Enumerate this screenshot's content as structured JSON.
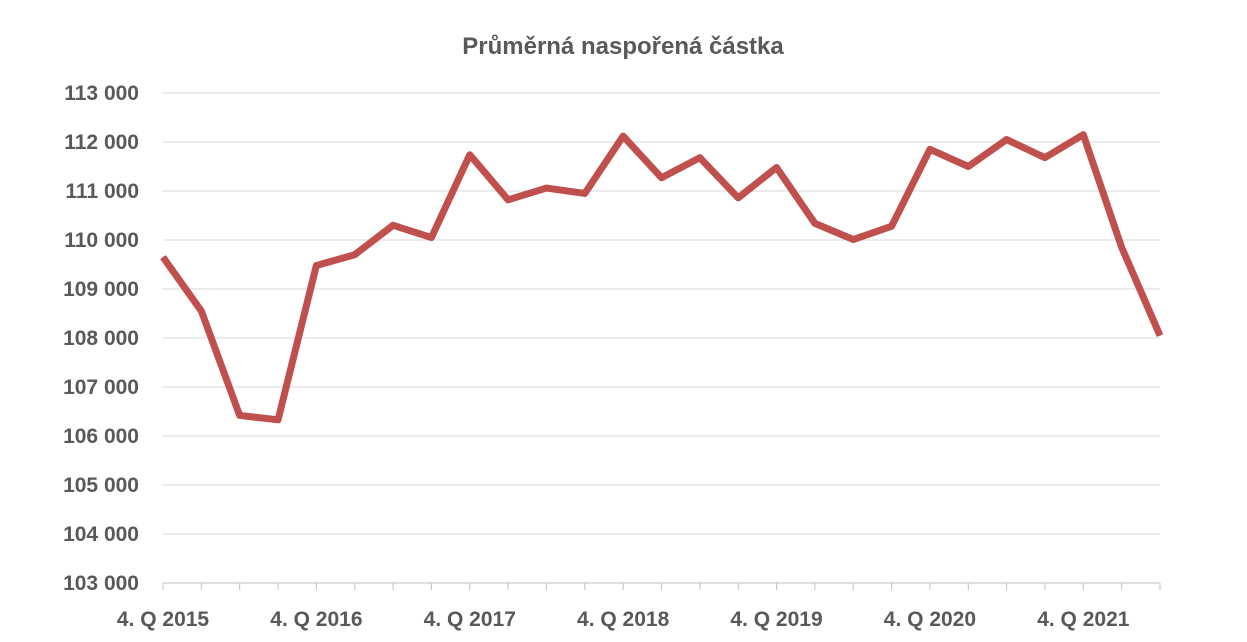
{
  "chart_data": {
    "type": "line",
    "title": "Průměrná naspořená částka",
    "xlabel": "",
    "ylabel": "",
    "ylim": [
      103000,
      113000
    ],
    "yticks": [
      103000,
      104000,
      105000,
      106000,
      107000,
      108000,
      109000,
      110000,
      111000,
      112000,
      113000
    ],
    "ytick_labels": [
      "103 000",
      "104 000",
      "105 000",
      "106 000",
      "107 000",
      "108 000",
      "109 000",
      "110 000",
      "111 000",
      "112 000",
      "113 000"
    ],
    "x_tick_labels": [
      "4. Q 2015",
      "4. Q 2016",
      "4. Q 2017",
      "4. Q 2018",
      "4. Q 2019",
      "4. Q 2020",
      "4. Q 2021"
    ],
    "x_tick_label_quarter_index": [
      0,
      4,
      8,
      12,
      16,
      20,
      24
    ],
    "grid": true,
    "legend": "none",
    "series": [
      {
        "color": "#c0504d",
        "values": [
          109650,
          108550,
          106420,
          106330,
          109480,
          109700,
          110300,
          110050,
          111740,
          110820,
          111060,
          110950,
          112120,
          111270,
          111680,
          110860,
          111480,
          110340,
          110010,
          110280,
          111850,
          111500,
          112050,
          111680,
          112150,
          109850,
          108050
        ]
      }
    ]
  }
}
